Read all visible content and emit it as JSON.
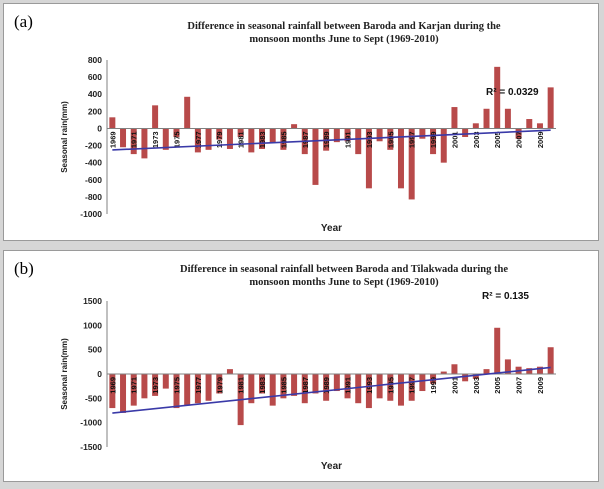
{
  "panels": [
    {
      "label": "(a)",
      "title_line1": "Difference in seasonal rainfall between Baroda and Karjan during the",
      "title_line2": "monsoon months June to Sept (1969-2010)",
      "r2": "R² = 0.0329"
    },
    {
      "label": "(b)",
      "title_line1": "Difference in seasonal rainfall between Baroda and Tilakwada during the",
      "title_line2": "monsoon months June to Sept (1969-2010)",
      "r2": "R² = 0.135"
    }
  ],
  "colors": {
    "bar": "#b84a4a",
    "trend": "#3a3aa8",
    "axis": "#808080"
  },
  "chart_data": [
    {
      "type": "bar",
      "title": "Difference in seasonal rainfall between Baroda and Karjan during the monsoon months June to Sept (1969-2010)",
      "xlabel": "Year",
      "ylabel": "Seasonal rain(mm)",
      "ylim": [
        -1000,
        800
      ],
      "yticks": [
        800,
        600,
        400,
        200,
        0,
        -200,
        -400,
        -600,
        -800,
        -1000
      ],
      "x": [
        1969,
        1970,
        1971,
        1972,
        1973,
        1974,
        1975,
        1976,
        1977,
        1978,
        1979,
        1980,
        1981,
        1982,
        1983,
        1984,
        1985,
        1986,
        1987,
        1988,
        1989,
        1990,
        1991,
        1992,
        1993,
        1994,
        1995,
        1996,
        1997,
        1998,
        1999,
        2000,
        2001,
        2002,
        2003,
        2004,
        2005,
        2006,
        2007,
        2008,
        2009,
        2010
      ],
      "category_labels": [
        "1969",
        "1971",
        "1973",
        "1975",
        "1977",
        "1979",
        "1981",
        "1983",
        "1985",
        "1987",
        "1989",
        "1991",
        "1993",
        "1995",
        "1997",
        "1999",
        "2001",
        "2003",
        "2005",
        "2007",
        "2009"
      ],
      "values": [
        130,
        -220,
        -300,
        -350,
        270,
        -250,
        -100,
        370,
        -280,
        -250,
        -130,
        -240,
        -100,
        -280,
        -240,
        -170,
        -250,
        50,
        -300,
        -660,
        -260,
        -160,
        -150,
        -300,
        -700,
        -150,
        -250,
        -700,
        -830,
        -120,
        -300,
        -400,
        250,
        -100,
        60,
        230,
        720,
        230,
        -120,
        110,
        60,
        480
      ],
      "trendline": {
        "r2": 0.0329
      }
    },
    {
      "type": "bar",
      "title": "Difference in seasonal rainfall between Baroda and Tilakwada during the monsoon months June to Sept (1969-2010)",
      "xlabel": "Year",
      "ylabel": "Seasonal rain(mm)",
      "ylim": [
        -1500,
        1500
      ],
      "yticks": [
        1500,
        1000,
        500,
        0,
        -500,
        -1000,
        -1500
      ],
      "x": [
        1969,
        1970,
        1971,
        1972,
        1973,
        1974,
        1975,
        1976,
        1977,
        1978,
        1979,
        1980,
        1981,
        1982,
        1983,
        1984,
        1985,
        1986,
        1987,
        1988,
        1989,
        1990,
        1991,
        1992,
        1993,
        1994,
        1995,
        1996,
        1997,
        1998,
        1999,
        2000,
        2001,
        2002,
        2003,
        2004,
        2005,
        2006,
        2007,
        2008,
        2009,
        2010
      ],
      "category_labels": [
        "1969",
        "1971",
        "1973",
        "1975",
        "1977",
        "1979",
        "1981",
        "1983",
        "1985",
        "1987",
        "1989",
        "1991",
        "1993",
        "1995",
        "1997",
        "1999",
        "2001",
        "2003",
        "2005",
        "2007",
        "2009"
      ],
      "values": [
        -700,
        -800,
        -650,
        -500,
        -450,
        -300,
        -700,
        -650,
        -600,
        -550,
        -400,
        100,
        -1050,
        -600,
        -400,
        -650,
        -500,
        -450,
        -600,
        -400,
        -550,
        -350,
        -500,
        -600,
        -700,
        -500,
        -550,
        -650,
        -550,
        -350,
        -200,
        50,
        200,
        -150,
        -100,
        100,
        950,
        300,
        150,
        120,
        150,
        550
      ],
      "trendline": {
        "r2": 0.135
      }
    }
  ]
}
